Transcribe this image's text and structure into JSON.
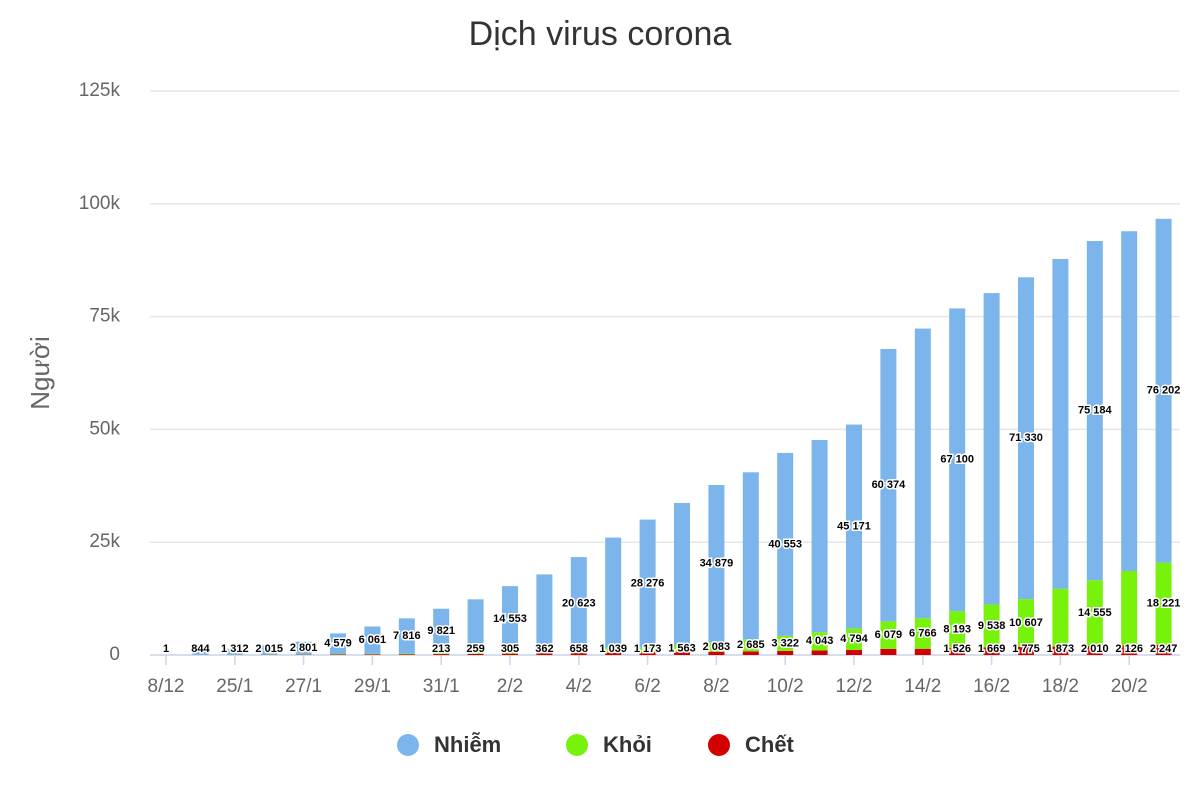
{
  "chart_data": {
    "type": "stacked_bar",
    "title": "Dịch virus corona",
    "y_label": "Người",
    "categories": [
      "8/12",
      null,
      "25/1",
      null,
      "27/1",
      null,
      "29/1",
      null,
      "31/1",
      null,
      "2/2",
      null,
      "4/2",
      null,
      "6/2",
      null,
      "8/2",
      null,
      "10/2",
      null,
      "12/2",
      null,
      "14/2",
      null,
      "16/2",
      null,
      "18/2",
      null,
      "20/2",
      null
    ],
    "series": [
      {
        "name": "Nhiễm",
        "color": "#7cb5ec",
        "values": [
          1,
          844,
          1312,
          2015,
          2801,
          4579,
          6061,
          7816,
          9821,
          11800,
          14553,
          17000,
          20623,
          24500,
          28276,
          31500,
          34879,
          37000,
          40553,
          42600,
          45171,
          60374,
          64200,
          67100,
          69000,
          71330,
          73100,
          75184,
          75300,
          76202
        ],
        "value_labels": [
          "1",
          "844",
          "1 312",
          "2 015",
          "2 801",
          "4 579",
          "6 061",
          "7 816",
          "9 821",
          null,
          "14 553",
          null,
          "20 623",
          null,
          "28 276",
          null,
          "34 879",
          null,
          "40 553",
          null,
          "45 171",
          "60 374",
          null,
          "67 100",
          null,
          "71 330",
          null,
          "75 184",
          null,
          "76 202"
        ]
      },
      {
        "name": "Khỏi",
        "color": "#77f20a",
        "values": [
          0,
          30,
          38,
          49,
          58,
          101,
          120,
          135,
          222,
          280,
          400,
          500,
          658,
          1039,
          1173,
          1563,
          2083,
          2685,
          3322,
          4043,
          4794,
          6079,
          6766,
          8193,
          9538,
          10607,
          12800,
          14555,
          16500,
          18221
        ],
        "value_labels": [
          null,
          null,
          null,
          null,
          null,
          null,
          null,
          null,
          null,
          null,
          null,
          null,
          "658",
          "1 039",
          "1 173",
          "1 563",
          "2 083",
          "2 685",
          "3 322",
          "4 043",
          "4 794",
          "6 079",
          "6 766",
          "8 193",
          "9 538",
          "10 607",
          null,
          "14 555",
          null,
          "18 221"
        ]
      },
      {
        "name": "Chết",
        "color": "#d40000",
        "values": [
          0,
          25,
          41,
          56,
          80,
          106,
          132,
          170,
          213,
          259,
          305,
          362,
          425,
          490,
          560,
          630,
          720,
          810,
          910,
          1020,
          1110,
          1370,
          1380,
          1526,
          1669,
          1775,
          1873,
          2010,
          2126,
          2247
        ],
        "value_labels": [
          null,
          null,
          null,
          null,
          null,
          null,
          null,
          null,
          "213",
          "259",
          "305",
          "362",
          null,
          null,
          null,
          null,
          null,
          null,
          null,
          null,
          null,
          null,
          null,
          "1 526",
          "1 669",
          "1 775",
          "1 873",
          "2 010",
          "2 126",
          "2 247"
        ]
      }
    ],
    "ylim": [
      0,
      125000
    ],
    "yticks": [
      0,
      {
        "value": 25000,
        "label": "25k"
      },
      {
        "value": 50000,
        "label": "50k"
      },
      {
        "value": 75000,
        "label": "75k"
      },
      {
        "value": 100000,
        "label": "100k"
      },
      {
        "value": 125000,
        "label": "125k"
      }
    ],
    "grid": true,
    "legend": "bottom"
  }
}
